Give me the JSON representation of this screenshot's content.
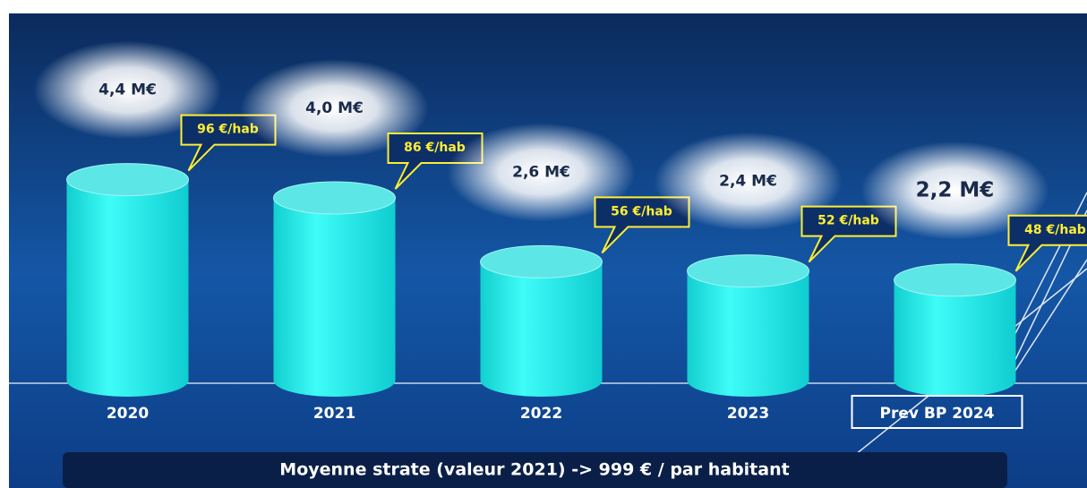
{
  "chart_data": {
    "type": "bar",
    "categories": [
      "2020",
      "2021",
      "2022",
      "2023",
      "Prev BP 2024"
    ],
    "values": [
      4.4,
      4.0,
      2.6,
      2.4,
      2.2
    ],
    "value_labels": [
      "4,4 M€",
      "4,0 M€",
      "2,6 M€",
      "2,4 M€",
      "2,2 M€"
    ],
    "per_habitant": {
      "values": [
        96,
        86,
        56,
        52,
        48
      ],
      "labels": [
        "96 €/hab",
        "86 €/hab",
        "56 €/hab",
        "52 €/hab",
        "48 €/hab"
      ]
    },
    "color": "#1ff2ef",
    "footnote": "Moyenne strate (valeur 2021)  ->  999 € / par habitant"
  }
}
